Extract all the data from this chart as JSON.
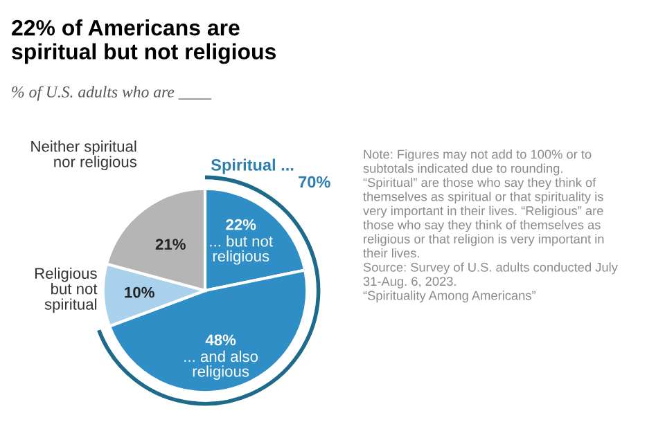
{
  "chart_data": {
    "type": "pie",
    "title": "22% of Americans are\nspiritual but not religious",
    "subtitle": "% of U.S. adults who are ____",
    "categories": [
      "... but not\nreligious",
      "... and also\nreligious",
      "Religious\nbut not\nspiritual",
      "Neither spiritual\nnor religious"
    ],
    "values": [
      22,
      48,
      10,
      21
    ],
    "colors": [
      "#2f8ec6",
      "#2f8ec6",
      "#a9d1eb",
      "#b5b5b5"
    ],
    "value_labels": [
      "22%",
      "48%",
      "10%",
      "21%"
    ],
    "annotations": [
      "Spiritual ...",
      "70%",
      "Note: Figures may not add to 100% or to\nsubtotals indicated due to rounding.\n“Spiritual” are those who say they think of\nthemselves as spiritual or that spirituality is\nvery important in their lives. “Religious” are\nthose who say they think of themselves as\nreligious or that religion is very important in\ntheir lives.\nSource: Survey of U.S. adults conducted July\n31-Aug. 6, 2023.\n“Spirituality Among Americans”"
    ]
  }
}
